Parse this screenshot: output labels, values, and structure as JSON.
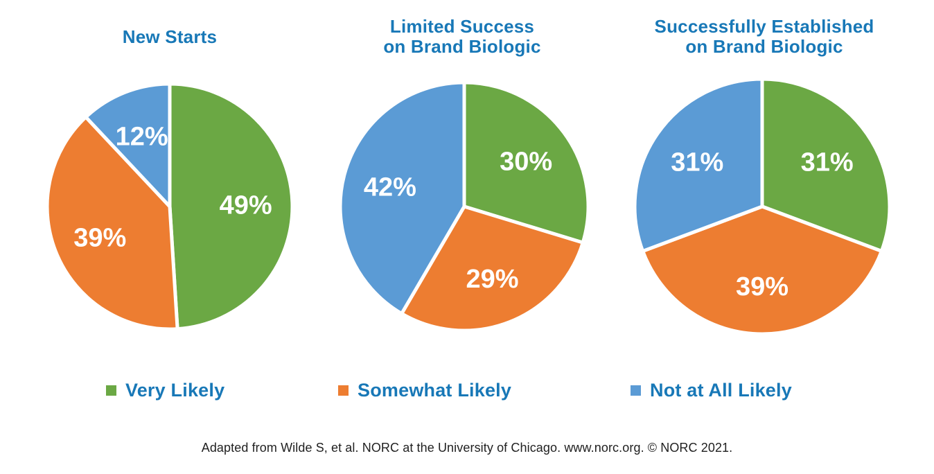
{
  "colors": {
    "green": "#6BA844",
    "orange": "#ED7D31",
    "blue": "#5B9BD5",
    "heading_blue": "#1878B7",
    "slice_divider": "#FFFFFF",
    "label_text": "#FFFFFF",
    "footer_text": "#1F1F1F"
  },
  "chart_data": [
    {
      "type": "pie",
      "title": "New Starts",
      "title_lines": [
        "New Starts"
      ],
      "categories": [
        "Very Likely",
        "Somewhat Likely",
        "Not at All Likely"
      ],
      "values": [
        49,
        39,
        12
      ],
      "data_labels": [
        "49%",
        "39%",
        "12%"
      ],
      "slice_colors": [
        "#6BA844",
        "#ED7D31",
        "#5B9BD5"
      ],
      "start_angle_deg": 0,
      "direction": "clockwise",
      "legend_position": "bottom"
    },
    {
      "type": "pie",
      "title": "Limited Success on Brand Biologic",
      "title_lines": [
        "Limited Success",
        "on Brand Biologic"
      ],
      "categories": [
        "Very Likely",
        "Somewhat Likely",
        "Not at All Likely"
      ],
      "values": [
        30,
        29,
        42
      ],
      "data_labels": [
        "30%",
        "29%",
        "42%"
      ],
      "slice_colors": [
        "#6BA844",
        "#ED7D31",
        "#5B9BD5"
      ],
      "start_angle_deg": 0,
      "direction": "clockwise",
      "legend_position": "bottom"
    },
    {
      "type": "pie",
      "title": "Successfully Established on Brand Biologic",
      "title_lines": [
        "Successfully Established",
        "on Brand Biologic"
      ],
      "categories": [
        "Very Likely",
        "Somewhat Likely",
        "Not at All Likely"
      ],
      "values": [
        31,
        39,
        31
      ],
      "data_labels": [
        "31%",
        "39%",
        "31%"
      ],
      "slice_colors": [
        "#6BA844",
        "#ED7D31",
        "#5B9BD5"
      ],
      "start_angle_deg": 0,
      "direction": "clockwise",
      "legend_position": "bottom"
    }
  ],
  "legend": {
    "items": [
      {
        "label": "Very Likely",
        "color": "#6BA844"
      },
      {
        "label": "Somewhat Likely",
        "color": "#ED7D31"
      },
      {
        "label": "Not at All Likely",
        "color": "#5B9BD5"
      }
    ]
  },
  "footer": {
    "text": "Adapted from Wilde S, et al. NORC at the University of Chicago. www.norc.org. © NORC 2021."
  }
}
